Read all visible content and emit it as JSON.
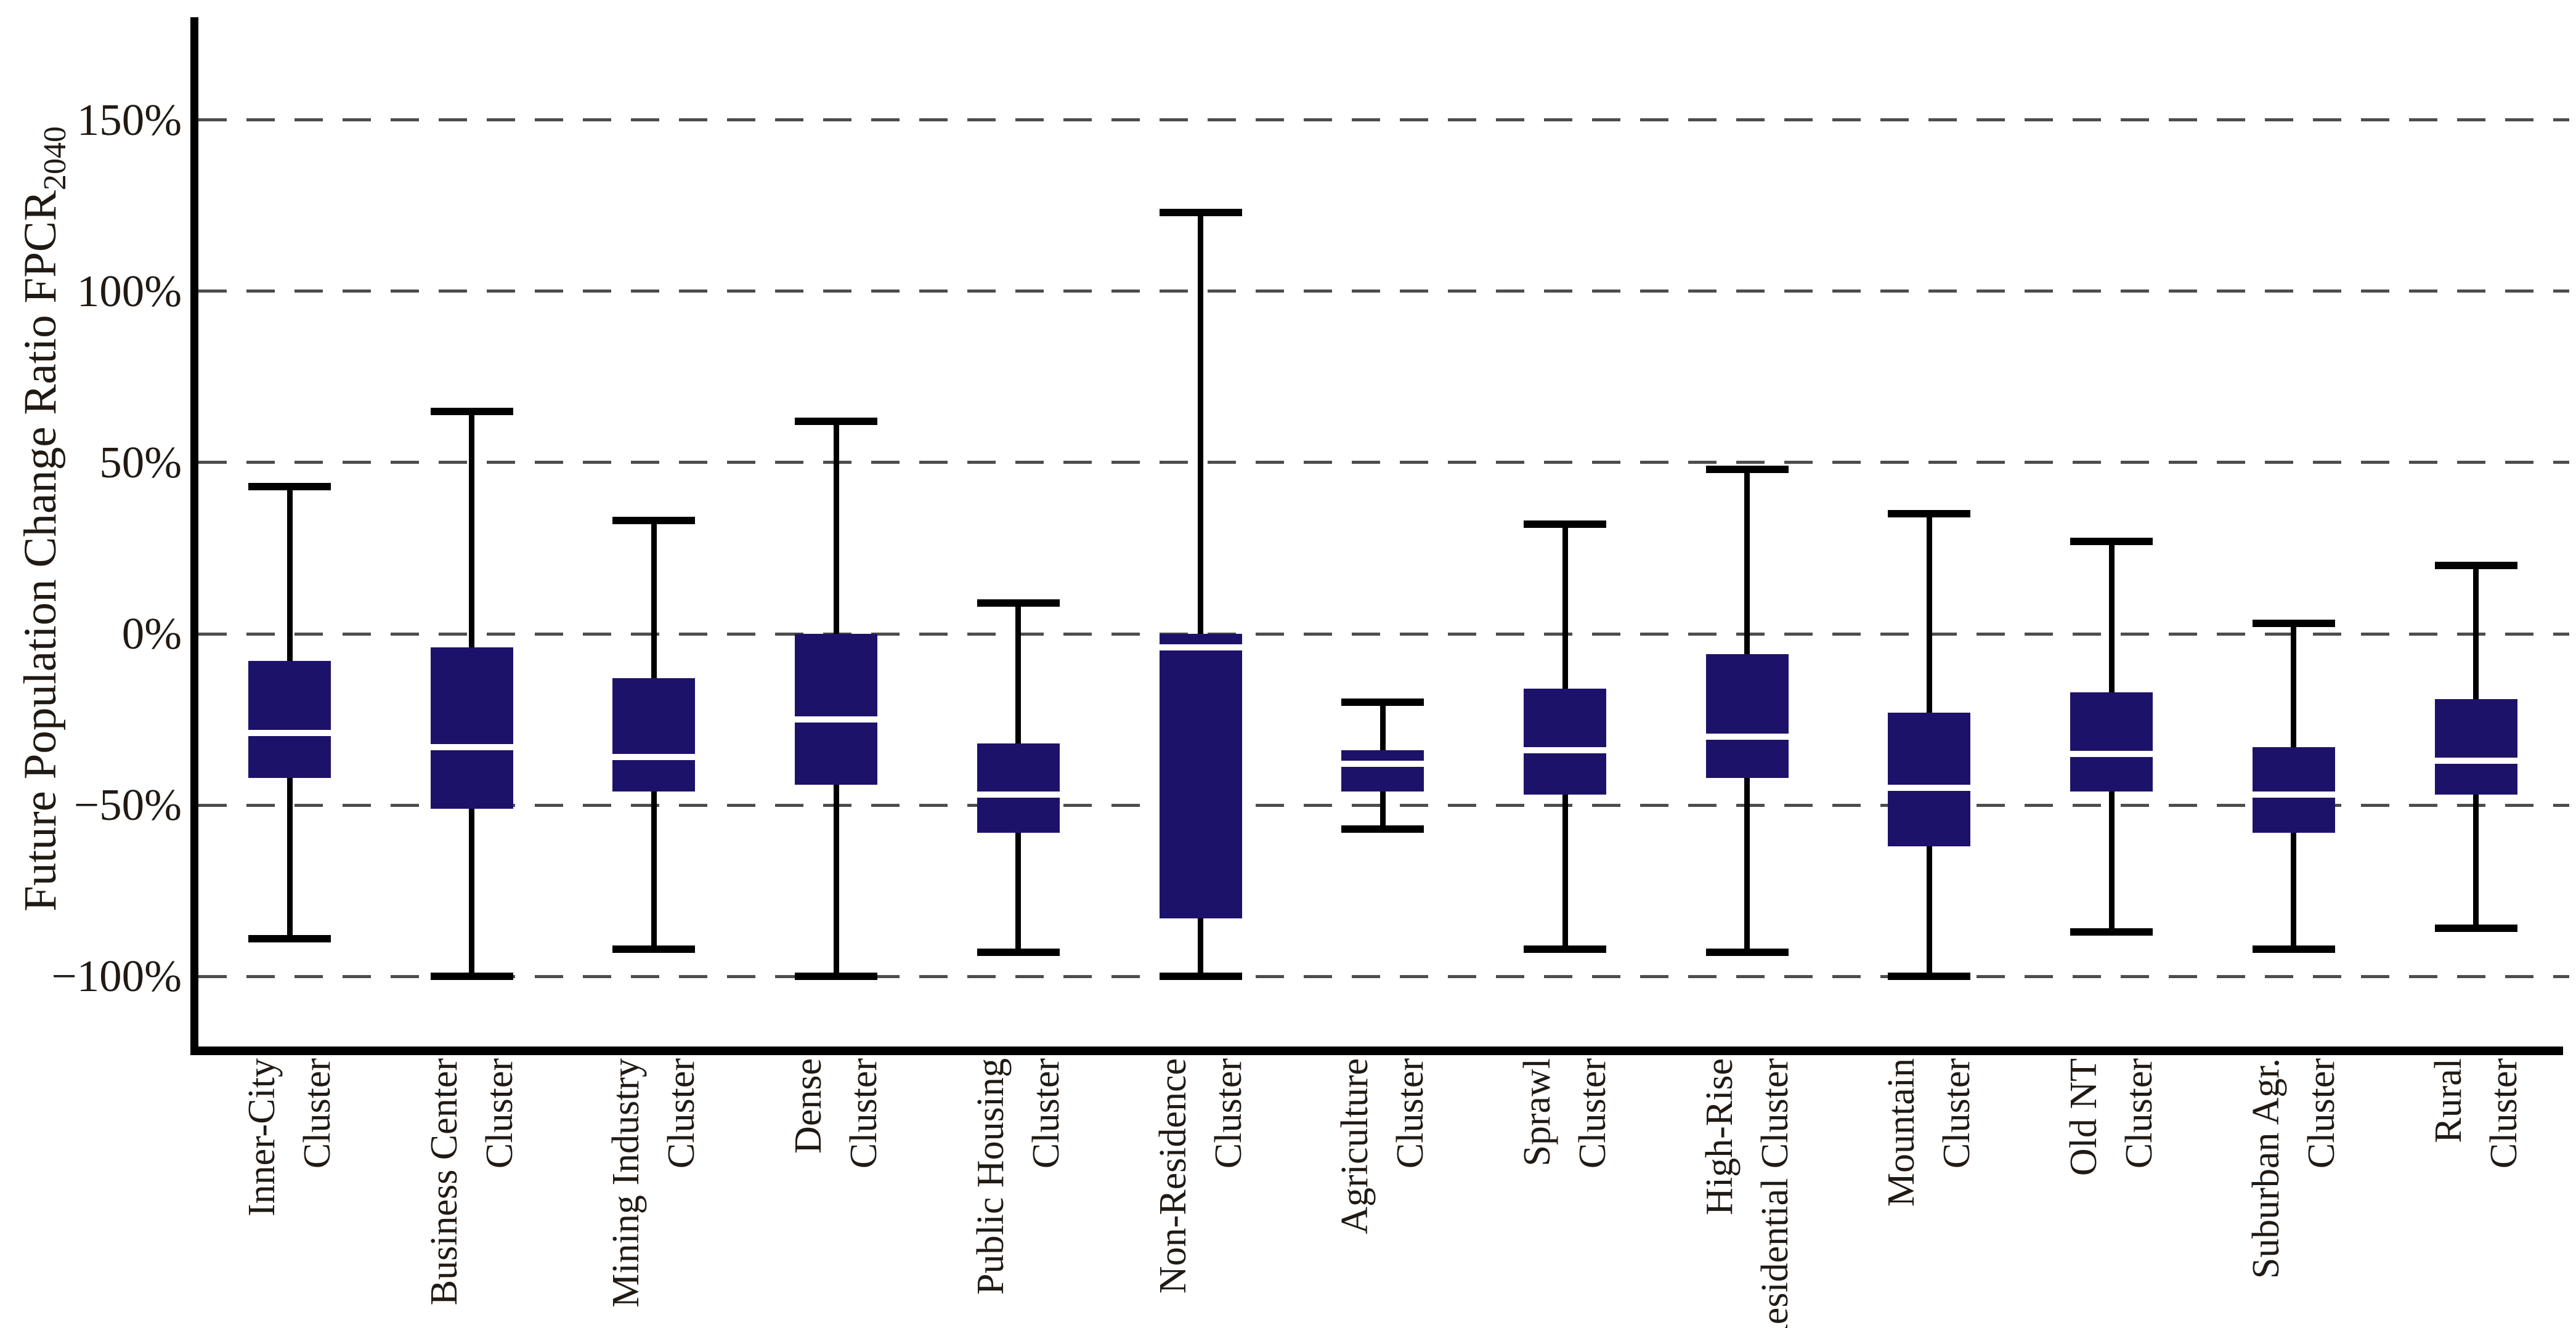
{
  "chart_data": {
    "type": "boxplot",
    "title": "",
    "xlabel": "",
    "ylabel_main": "Future Population Change Ratio FPCR",
    "ylabel_sub": "2040",
    "legend": "none",
    "grid": "horizontal dashed lines at 50% intervals",
    "ylim_percent": [
      -121,
      180
    ],
    "unit": "%",
    "yticks": [
      {
        "value": 150,
        "label": "150%"
      },
      {
        "value": 100,
        "label": "100%"
      },
      {
        "value": 50,
        "label": "50%"
      },
      {
        "value": 0,
        "label": "0%"
      },
      {
        "value": -50,
        "label": "−50%"
      },
      {
        "value": -100,
        "label": "−100%"
      }
    ],
    "series": [
      {
        "name": "Inner-City Cluster",
        "label_line1": "Inner-City",
        "label_line2": "Cluster",
        "whisker_low": -89,
        "q1": -42,
        "median": -29,
        "q3": -8,
        "whisker_high": 43
      },
      {
        "name": "Business Center Cluster",
        "label_line1": "Business Center",
        "label_line2": "Cluster",
        "whisker_low": -100,
        "q1": -51,
        "median": -33,
        "q3": -4,
        "whisker_high": 65
      },
      {
        "name": "Mining Industry Cluster",
        "label_line1": "Mining Industry",
        "label_line2": "Cluster",
        "whisker_low": -92,
        "q1": -46,
        "median": -36,
        "q3": -13,
        "whisker_high": 33
      },
      {
        "name": "Dense Cluster",
        "label_line1": "Dense",
        "label_line2": "Cluster",
        "whisker_low": -100,
        "q1": -44,
        "median": -25,
        "q3": 0,
        "whisker_high": 62
      },
      {
        "name": "Public Housing Cluster",
        "label_line1": "Public Housing",
        "label_line2": "Cluster",
        "whisker_low": -93,
        "q1": -58,
        "median": -47,
        "q3": -32,
        "whisker_high": 9
      },
      {
        "name": "Non-Residence Cluster",
        "label_line1": "Non-Residence",
        "label_line2": "Cluster",
        "whisker_low": -100,
        "q1": -83,
        "median": -4,
        "q3": 0,
        "whisker_high": 123
      },
      {
        "name": "Agriculture Cluster",
        "label_line1": "Agriculture",
        "label_line2": "Cluster",
        "whisker_low": -57,
        "q1": -46,
        "median": -38,
        "q3": -34,
        "whisker_high": -20
      },
      {
        "name": "Sprawl Cluster",
        "label_line1": "Sprawl",
        "label_line2": "Cluster",
        "whisker_low": -92,
        "q1": -47,
        "median": -34,
        "q3": -16,
        "whisker_high": 32
      },
      {
        "name": "High-Rise Residential Cluster",
        "label_line1": "High-Rise",
        "label_line2": "Residential Cluster",
        "whisker_low": -93,
        "q1": -42,
        "median": -30,
        "q3": -6,
        "whisker_high": 48
      },
      {
        "name": "Mountain Cluster",
        "label_line1": "Mountain",
        "label_line2": "Cluster",
        "whisker_low": -100,
        "q1": -62,
        "median": -45,
        "q3": -23,
        "whisker_high": 35
      },
      {
        "name": "Old NT Cluster",
        "label_line1": "Old NT",
        "label_line2": "Cluster",
        "whisker_low": -87,
        "q1": -46,
        "median": -35,
        "q3": -17,
        "whisker_high": 27
      },
      {
        "name": "Suburban Agr. Cluster",
        "label_line1": "Suburban Agr.",
        "label_line2": "Cluster",
        "whisker_low": -92,
        "q1": -58,
        "median": -47,
        "q3": -33,
        "whisker_high": 3
      },
      {
        "name": "Rural Cluster",
        "label_line1": "Rural",
        "label_line2": "Cluster",
        "whisker_low": -86,
        "q1": -47,
        "median": -37,
        "q3": -19,
        "whisker_high": 20
      }
    ],
    "colors": {
      "box_fill": "#1d1269",
      "median_line": "#ffffff",
      "whisker": "#000000",
      "axis": "#000000",
      "gridline": "#4d4d4d",
      "text": "#211a14",
      "background": "#ffffff"
    }
  }
}
